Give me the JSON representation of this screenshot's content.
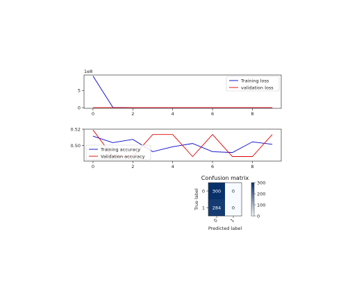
{
  "chart_data": [
    {
      "type": "line",
      "x": [
        0,
        1,
        2,
        3,
        4,
        5,
        6,
        7,
        8,
        9
      ],
      "offset_text": "1e8",
      "ylim": [
        -0.2,
        9.5
      ],
      "xlim": [
        -0.45,
        9.45
      ],
      "xticks": [
        "0",
        "2",
        "4",
        "6",
        "8"
      ],
      "yticks": [
        "0",
        "5"
      ],
      "legend_position": "upper-right",
      "series": [
        {
          "name": "Training loss",
          "color": "#0000cc",
          "values": [
            9.2,
            0.05,
            0.02,
            0.02,
            0.02,
            0.02,
            0.02,
            0.02,
            0.02,
            0.02
          ]
        },
        {
          "name": "validation loss",
          "color": "#dd0000",
          "values": [
            0.02,
            0.02,
            0.02,
            0.02,
            0.02,
            0.02,
            0.02,
            0.02,
            0.02,
            0.02
          ]
        }
      ]
    },
    {
      "type": "line",
      "x": [
        0,
        1,
        2,
        3,
        4,
        5,
        6,
        7,
        8,
        9
      ],
      "ylim": [
        0.481,
        0.52
      ],
      "xlim": [
        -0.45,
        9.45
      ],
      "xticks": [
        "0",
        "2",
        "4",
        "6",
        "8"
      ],
      "yticks": [
        "0.50",
        "0.52"
      ],
      "ytick_values": [
        0.5,
        0.52
      ],
      "legend_position": "lower-left",
      "series": [
        {
          "name": "Training accuracy",
          "color": "#0000cc",
          "values": [
            0.5115,
            0.5035,
            0.5075,
            0.4925,
            0.4985,
            0.5025,
            0.4925,
            0.4915,
            0.5045,
            0.5015
          ]
        },
        {
          "name": "Validation accuracy",
          "color": "#dd0000",
          "values": [
            0.519,
            0.4865,
            0.4865,
            0.5135,
            0.5135,
            0.4865,
            0.5135,
            0.4865,
            0.4865,
            0.5135
          ]
        }
      ]
    },
    {
      "type": "heatmap",
      "title": "Confusion matrix",
      "xlabel": "Predicted label",
      "ylabel": "True label",
      "xticks": [
        "0",
        "1"
      ],
      "yticks": [
        "0",
        "1"
      ],
      "matrix": [
        [
          300,
          0
        ],
        [
          284,
          0
        ]
      ],
      "colorbar_ticks": [
        "0",
        "100",
        "200",
        "300"
      ],
      "colorbar_values": [
        0,
        100,
        200,
        300
      ],
      "vmax": 300,
      "colormap": [
        "#f7fbff",
        "#08306b"
      ]
    }
  ]
}
